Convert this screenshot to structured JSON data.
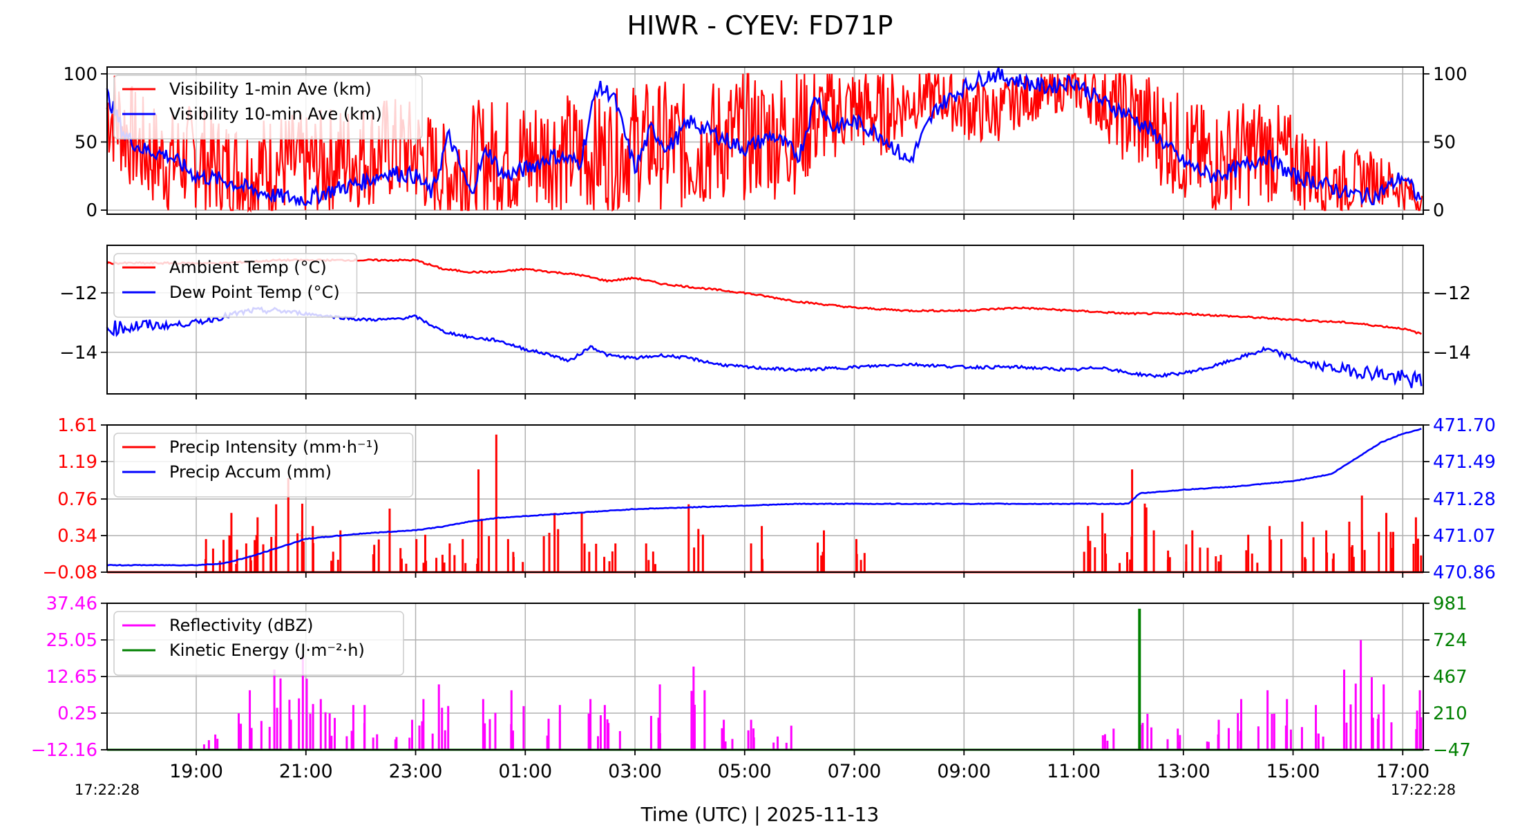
{
  "title": "HIWR - CYEV: FD71P",
  "xlabel": "Time (UTC)  |  2025-11-13",
  "x_ticks": [
    "19:00",
    "21:00",
    "23:00",
    "01:00",
    "03:00",
    "05:00",
    "07:00",
    "09:00",
    "11:00",
    "13:00",
    "15:00",
    "17:00"
  ],
  "x_start_label": "17:22:28",
  "x_end_label": "17:22:28",
  "colors": {
    "red": "#ff0000",
    "blue": "#0000ff",
    "magenta": "#ff00ff",
    "green": "#008000",
    "grid": "#b0b0b0"
  },
  "chart_data": [
    {
      "type": "line",
      "panel": "visibility",
      "x_range": [
        "17:22:28",
        "17:22:28"
      ],
      "y_left_ticks": [
        "0",
        "50",
        "100"
      ],
      "y_right_ticks": [
        "0",
        "50",
        "100"
      ],
      "ylim": [
        -3,
        105
      ],
      "series": [
        {
          "name": "Visibility 1-min Ave (km)",
          "color": "#ff0000",
          "style": "noisy",
          "x": [
            17.37,
            18.0,
            18.5,
            19.0,
            19.5,
            20.0,
            20.5,
            21.0,
            21.5,
            22.0,
            22.5,
            23.0,
            23.5,
            24.0,
            24.5,
            25.0,
            25.5,
            26.0,
            26.5,
            27.0,
            27.5,
            28.0,
            28.5,
            29.0,
            29.5,
            30.0,
            30.5,
            31.0,
            31.5,
            32.0,
            32.5,
            33.0,
            33.5,
            34.0,
            34.5,
            35.0,
            35.5,
            36.0,
            36.5,
            37.0,
            37.5,
            38.0,
            38.5,
            39.0,
            39.5,
            40.0,
            40.5,
            41.0,
            41.37
          ],
          "y": [
            75,
            45,
            35,
            40,
            30,
            28,
            35,
            30,
            38,
            40,
            45,
            42,
            25,
            35,
            40,
            38,
            45,
            40,
            42,
            50,
            48,
            45,
            50,
            55,
            55,
            60,
            70,
            75,
            70,
            80,
            85,
            75,
            70,
            80,
            85,
            90,
            80,
            70,
            60,
            45,
            35,
            40,
            45,
            35,
            25,
            20,
            25,
            15,
            5
          ],
          "noise": [
            25,
            25,
            25,
            25,
            25,
            25,
            25,
            25,
            25,
            25,
            25,
            25,
            25,
            28,
            28,
            28,
            28,
            28,
            28,
            28,
            30,
            30,
            30,
            30,
            30,
            30,
            22,
            20,
            20,
            15,
            12,
            15,
            15,
            12,
            10,
            10,
            15,
            25,
            25,
            25,
            25,
            25,
            25,
            22,
            18,
            15,
            12,
            10,
            5
          ]
        },
        {
          "name": "Visibility 10-min Ave (km)",
          "color": "#0000ff",
          "style": "step",
          "x": [
            17.37,
            17.7,
            18.0,
            18.5,
            19.0,
            19.5,
            20.0,
            20.5,
            21.0,
            21.5,
            22.0,
            22.5,
            23.0,
            23.3,
            23.6,
            24.0,
            24.3,
            24.6,
            25.0,
            25.5,
            26.0,
            26.3,
            26.6,
            27.0,
            27.3,
            27.6,
            28.0,
            28.5,
            29.0,
            29.5,
            30.0,
            30.3,
            30.6,
            31.0,
            31.5,
            32.0,
            32.5,
            33.0,
            33.5,
            34.0,
            34.5,
            35.0,
            35.5,
            36.0,
            36.5,
            37.0,
            37.5,
            38.0,
            38.5,
            39.0,
            39.5,
            40.0,
            40.5,
            41.0,
            41.37
          ],
          "y": [
            85,
            55,
            45,
            40,
            25,
            22,
            15,
            10,
            8,
            15,
            20,
            28,
            25,
            12,
            55,
            12,
            45,
            25,
            30,
            40,
            35,
            90,
            85,
            30,
            60,
            45,
            65,
            55,
            45,
            55,
            40,
            85,
            60,
            65,
            55,
            35,
            75,
            90,
            100,
            95,
            90,
            95,
            80,
            70,
            55,
            35,
            25,
            30,
            40,
            25,
            20,
            12,
            10,
            25,
            5
          ]
        }
      ]
    },
    {
      "type": "line",
      "panel": "temperature",
      "x_range": [
        "17:22:28",
        "17:22:28"
      ],
      "y_left_ticks": [
        "−14",
        "−12"
      ],
      "y_right_ticks": [
        "−14",
        "−12"
      ],
      "ylim": [
        -15.4,
        -10.4
      ],
      "series": [
        {
          "name": "Ambient Temp (°C)",
          "color": "#ff0000",
          "style": "step",
          "x": [
            17.37,
            18.5,
            19.5,
            20.5,
            21.5,
            22.5,
            23.0,
            23.5,
            24.0,
            24.5,
            25.0,
            25.5,
            26.0,
            26.5,
            27.0,
            27.5,
            28.0,
            28.5,
            29.0,
            30.0,
            31.0,
            32.0,
            33.0,
            34.0,
            35.0,
            36.0,
            37.0,
            38.0,
            39.0,
            40.0,
            40.5,
            41.0,
            41.37
          ],
          "y": [
            -11.0,
            -11.0,
            -11.0,
            -10.9,
            -10.9,
            -10.9,
            -10.9,
            -11.2,
            -11.3,
            -11.3,
            -11.2,
            -11.3,
            -11.4,
            -11.6,
            -11.5,
            -11.7,
            -11.8,
            -11.9,
            -12.0,
            -12.3,
            -12.5,
            -12.6,
            -12.6,
            -12.5,
            -12.6,
            -12.7,
            -12.7,
            -12.8,
            -12.9,
            -13.0,
            -13.1,
            -13.2,
            -13.4
          ]
        },
        {
          "name": "Dew Point Temp (°C)",
          "color": "#0000ff",
          "style": "step",
          "x": [
            17.37,
            18.0,
            18.5,
            19.0,
            19.5,
            20.0,
            20.5,
            21.0,
            21.5,
            22.0,
            22.5,
            23.0,
            23.5,
            24.0,
            24.5,
            25.0,
            25.5,
            25.8,
            26.2,
            26.5,
            27.0,
            27.5,
            28.0,
            28.5,
            29.0,
            30.0,
            31.0,
            32.0,
            33.0,
            34.0,
            35.0,
            35.5,
            36.0,
            36.5,
            37.0,
            37.5,
            38.0,
            38.5,
            39.0,
            39.3,
            39.6,
            40.0,
            40.5,
            41.0,
            41.37
          ],
          "y": [
            -13.2,
            -13.1,
            -13.1,
            -13.0,
            -12.8,
            -12.6,
            -12.6,
            -12.7,
            -12.8,
            -12.9,
            -12.9,
            -12.8,
            -13.3,
            -13.5,
            -13.6,
            -13.9,
            -14.1,
            -14.3,
            -13.8,
            -14.1,
            -14.2,
            -14.1,
            -14.2,
            -14.4,
            -14.5,
            -14.6,
            -14.5,
            -14.4,
            -14.5,
            -14.5,
            -14.6,
            -14.5,
            -14.7,
            -14.8,
            -14.7,
            -14.5,
            -14.2,
            -13.9,
            -14.2,
            -14.4,
            -14.5,
            -14.6,
            -14.7,
            -14.9,
            -15.0
          ],
          "noise": [
            0.25,
            0.25,
            0.1,
            0.1,
            0.1,
            0.1,
            0.1,
            0.05,
            0.05,
            0.05,
            0.05,
            0.05,
            0.05,
            0.05,
            0.05,
            0.05,
            0.05,
            0.05,
            0.05,
            0.05,
            0.05,
            0.05,
            0.05,
            0.05,
            0.05,
            0.05,
            0.05,
            0.05,
            0.05,
            0.05,
            0.05,
            0.05,
            0.05,
            0.05,
            0.05,
            0.05,
            0.05,
            0.1,
            0.1,
            0.1,
            0.15,
            0.2,
            0.25,
            0.3,
            0.3
          ]
        }
      ]
    },
    {
      "type": "line",
      "panel": "precipitation",
      "x_range": [
        "17:22:28",
        "17:22:28"
      ],
      "y_left_ticks": [
        "−0.08",
        "0.34",
        "0.76",
        "1.19",
        "1.61"
      ],
      "y_right_ticks": [
        "470.86",
        "471.07",
        "471.28",
        "471.49",
        "471.70"
      ],
      "ylim_left": [
        -0.08,
        1.61
      ],
      "ylim_right": [
        470.86,
        471.7
      ],
      "series": [
        {
          "name": "Precip Intensity (mm·h⁻¹)",
          "color": "#ff0000",
          "axis": "left",
          "style": "spikes",
          "baseline": -0.08,
          "x": [
            19.3,
            19.6,
            19.9,
            20.2,
            20.5,
            20.8,
            21.0,
            21.6,
            22.4,
            22.9,
            23.3,
            23.6,
            24.0,
            24.3,
            24.8,
            25.5,
            26.2,
            26.6,
            27.3,
            28.1,
            29.2,
            30.3,
            31.1,
            35.2,
            35.5,
            36.0,
            36.2,
            36.6,
            37.2,
            37.6,
            38.2,
            38.7,
            39.2,
            39.6,
            40.0,
            40.4,
            40.8,
            41.2
          ],
          "y": [
            0.3,
            0.6,
            0.25,
            0.55,
            0.7,
            1.0,
            0.45,
            0.4,
            0.65,
            0.3,
            0.35,
            0.25,
            0.3,
            1.5,
            0.3,
            0.6,
            0.6,
            0.25,
            0.25,
            0.7,
            0.45,
            0.4,
            0.3,
            0.45,
            0.6,
            0.15,
            1.1,
            0.4,
            0.4,
            0.2,
            0.35,
            0.45,
            0.5,
            0.4,
            0.5,
            0.8,
            0.6,
            0.55
          ]
        },
        {
          "name": "Precip Accum (mm)",
          "color": "#0000ff",
          "axis": "right",
          "style": "step",
          "x": [
            17.37,
            19.0,
            19.5,
            20.0,
            20.5,
            21.0,
            22.0,
            23.0,
            23.5,
            24.0,
            24.5,
            25.0,
            26.0,
            27.0,
            28.0,
            29.0,
            30.0,
            34.0,
            36.0,
            36.2,
            37.0,
            38.0,
            39.0,
            39.7,
            40.2,
            40.6,
            41.0,
            41.37
          ],
          "y": [
            470.9,
            470.9,
            470.91,
            470.95,
            471.0,
            471.05,
            471.08,
            471.1,
            471.12,
            471.15,
            471.17,
            471.18,
            471.2,
            471.22,
            471.23,
            471.24,
            471.25,
            471.25,
            471.25,
            471.31,
            471.33,
            471.35,
            471.38,
            471.42,
            471.52,
            471.6,
            471.65,
            471.68
          ]
        }
      ]
    },
    {
      "type": "line",
      "panel": "reflectivity",
      "x_range": [
        "17:22:28",
        "17:22:28"
      ],
      "y_left_ticks": [
        "−12.16",
        "0.25",
        "12.65",
        "25.05",
        "37.46"
      ],
      "y_right_ticks": [
        "−47",
        "210",
        "467",
        "724",
        "981"
      ],
      "ylim_left": [
        -12.16,
        37.46
      ],
      "ylim_right": [
        -47,
        981
      ],
      "series": [
        {
          "name": "Reflectivity (dBZ)",
          "color": "#ff00ff",
          "axis": "left",
          "style": "spikes",
          "baseline": -12.16,
          "x": [
            19.3,
            19.9,
            20.3,
            20.7,
            21.0,
            21.4,
            21.7,
            22.2,
            22.8,
            23.2,
            23.6,
            24.4,
            24.9,
            25.5,
            26.2,
            26.6,
            27.4,
            28.2,
            28.7,
            29.2,
            29.7,
            35.7,
            36.3,
            36.8,
            37.5,
            38.0,
            38.5,
            39.0,
            39.5,
            40.0,
            40.3,
            40.7,
            41.2
          ],
          "y": [
            -7,
            8,
            15,
            12,
            20,
            5,
            3,
            3,
            -2,
            5,
            10,
            5,
            8,
            3,
            5,
            3,
            10,
            16,
            -2,
            -2,
            -4,
            -5,
            0,
            -5,
            -2,
            5,
            8,
            5,
            3,
            15,
            25,
            10,
            8
          ]
        },
        {
          "name": "Kinetic Energy (J·m⁻²·h)",
          "color": "#008000",
          "axis": "right",
          "style": "spikes",
          "baseline": -47,
          "x": [
            36.2
          ],
          "y": [
            943
          ]
        }
      ]
    }
  ]
}
